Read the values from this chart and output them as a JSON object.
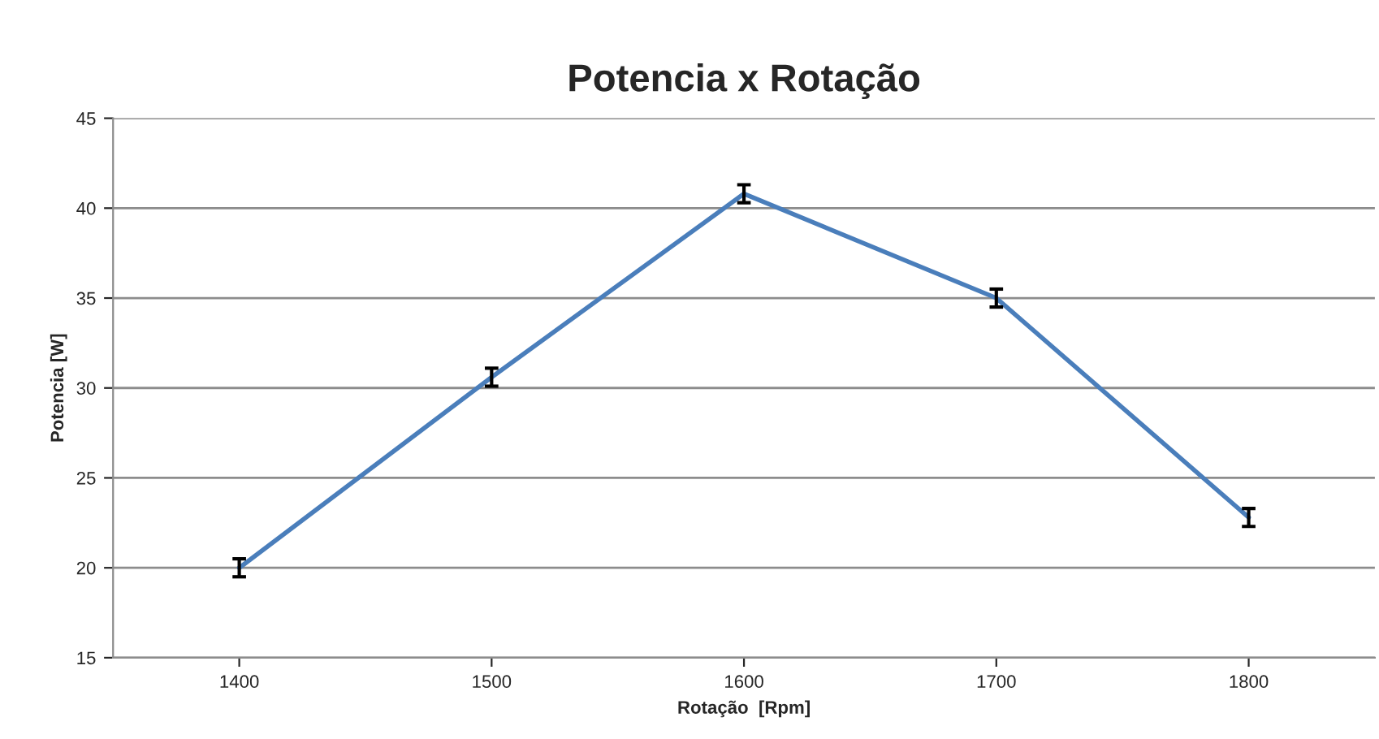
{
  "chart_data": {
    "type": "line",
    "title": "Potencia x Rotação",
    "xlabel": "Rotação  [Rpm]",
    "ylabel": "Potencia [W]",
    "categories": [
      "1400",
      "1500",
      "1600",
      "1700",
      "1800"
    ],
    "series": [
      {
        "color": "#4a7ebb",
        "values": [
          20.0,
          30.6,
          40.8,
          35.0,
          22.8
        ],
        "errors": [
          0.5,
          0.5,
          0.5,
          0.5,
          0.5
        ]
      }
    ],
    "ylim": [
      15,
      45
    ],
    "yticks": [
      15,
      20,
      25,
      30,
      35,
      40,
      45
    ],
    "grid": "y",
    "marker": "none",
    "line_style": "solid",
    "legend": false
  }
}
